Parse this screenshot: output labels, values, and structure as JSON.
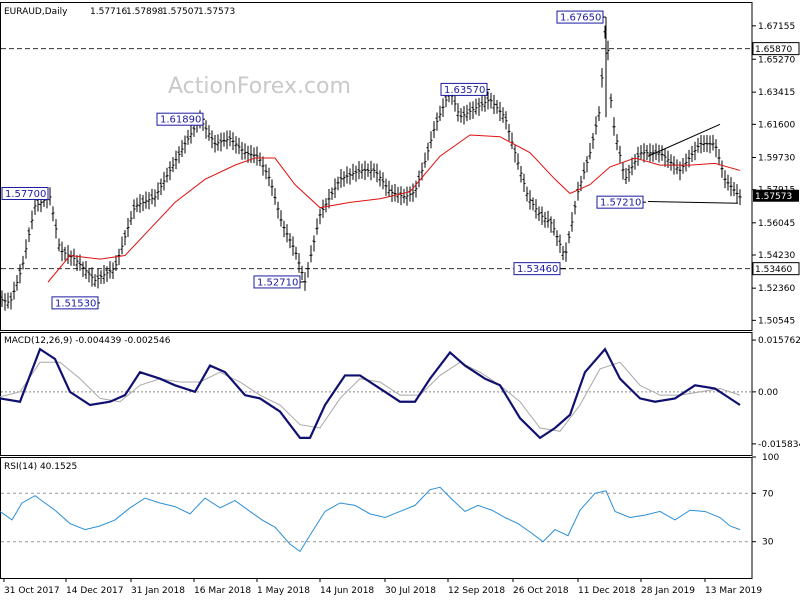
{
  "watermark": "ActionForex.com",
  "chart_data": [
    {
      "type": "ohlc",
      "panel": "price",
      "symbol": "EURAUD,Daily",
      "ohlc_header": [
        "1.57716",
        "1.57898",
        "1.57507",
        "1.57573"
      ],
      "last_price": "1.57573",
      "y_range": [
        1.5,
        1.685
      ],
      "y_ticks": [
        "1.67155",
        "1.65270",
        "1.63415",
        "1.61600",
        "1.59730",
        "1.57915",
        "1.56045",
        "1.54230",
        "1.52360",
        "1.50545"
      ],
      "horizontal_levels": [
        "1.65870",
        "1.53460"
      ],
      "annotations": [
        "1.67650",
        "1.63570",
        "1.61890",
        "1.57700",
        "1.57210",
        "1.53460",
        "1.52710",
        "1.51530"
      ],
      "x_tick_labels": [
        "31 Oct 2017",
        "14 Dec 2017",
        "31 Jan 2018",
        "16 Mar 2018",
        "1 May 2018",
        "14 Jun 2018",
        "30 Jul 2018",
        "12 Sep 2018",
        "26 Oct 2018",
        "11 Dec 2018",
        "28 Jan 2019",
        "13 Mar 2019"
      ],
      "price_path": [
        [
          0,
          1.5175
        ],
        [
          10,
          1.5153
        ],
        [
          22,
          1.535
        ],
        [
          35,
          1.57
        ],
        [
          50,
          1.575
        ],
        [
          60,
          1.545
        ],
        [
          75,
          1.54
        ],
        [
          95,
          1.528
        ],
        [
          115,
          1.535
        ],
        [
          135,
          1.57
        ],
        [
          155,
          1.575
        ],
        [
          170,
          1.59
        ],
        [
          185,
          1.605
        ],
        [
          200,
          1.619
        ],
        [
          215,
          1.605
        ],
        [
          230,
          1.608
        ],
        [
          245,
          1.6
        ],
        [
          258,
          1.598
        ],
        [
          270,
          1.585
        ],
        [
          282,
          1.56
        ],
        [
          295,
          1.545
        ],
        [
          305,
          1.5271
        ],
        [
          320,
          1.565
        ],
        [
          340,
          1.585
        ],
        [
          360,
          1.59
        ],
        [
          375,
          1.59
        ],
        [
          390,
          1.578
        ],
        [
          405,
          1.575
        ],
        [
          415,
          1.578
        ],
        [
          425,
          1.595
        ],
        [
          435,
          1.615
        ],
        [
          450,
          1.635
        ],
        [
          460,
          1.62
        ],
        [
          475,
          1.625
        ],
        [
          490,
          1.63
        ],
        [
          505,
          1.62
        ],
        [
          515,
          1.6
        ],
        [
          528,
          1.575
        ],
        [
          540,
          1.565
        ],
        [
          552,
          1.56
        ],
        [
          565,
          1.541
        ],
        [
          578,
          1.578
        ],
        [
          590,
          1.6
        ],
        [
          600,
          1.625
        ],
        [
          606,
          1.6765
        ],
        [
          612,
          1.62
        ],
        [
          625,
          1.585
        ],
        [
          640,
          1.6
        ],
        [
          660,
          1.6
        ],
        [
          680,
          1.59
        ],
        [
          700,
          1.605
        ],
        [
          715,
          1.605
        ],
        [
          725,
          1.585
        ],
        [
          740,
          1.575
        ]
      ],
      "ma_path": [
        [
          48,
          1.527
        ],
        [
          70,
          1.542
        ],
        [
          100,
          1.54
        ],
        [
          125,
          1.542
        ],
        [
          150,
          1.557
        ],
        [
          175,
          1.572
        ],
        [
          205,
          1.585
        ],
        [
          235,
          1.593
        ],
        [
          255,
          1.597
        ],
        [
          275,
          1.597
        ],
        [
          295,
          1.582
        ],
        [
          320,
          1.569
        ],
        [
          350,
          1.572
        ],
        [
          380,
          1.574
        ],
        [
          410,
          1.578
        ],
        [
          440,
          1.598
        ],
        [
          470,
          1.61
        ],
        [
          500,
          1.609
        ],
        [
          530,
          1.6
        ],
        [
          555,
          1.585
        ],
        [
          570,
          1.577
        ],
        [
          590,
          1.582
        ],
        [
          610,
          1.592
        ],
        [
          635,
          1.597
        ],
        [
          660,
          1.593
        ],
        [
          690,
          1.593
        ],
        [
          715,
          1.594
        ],
        [
          740,
          1.59
        ]
      ]
    },
    {
      "type": "line",
      "panel": "macd",
      "label": "MACD(12,26,9) -0.004439 -0.002546",
      "y_range": [
        -0.018,
        0.017
      ],
      "y_ticks": [
        "0.015762",
        "0.00",
        "-0.015834"
      ],
      "macd_path": [
        [
          0,
          -0.002
        ],
        [
          20,
          -0.003
        ],
        [
          40,
          0.013
        ],
        [
          55,
          0.01
        ],
        [
          70,
          0.0
        ],
        [
          90,
          -0.004
        ],
        [
          110,
          -0.003
        ],
        [
          125,
          -0.001
        ],
        [
          140,
          0.006
        ],
        [
          160,
          0.004
        ],
        [
          175,
          0.002
        ],
        [
          195,
          0.0
        ],
        [
          210,
          0.008
        ],
        [
          225,
          0.006
        ],
        [
          245,
          -0.001
        ],
        [
          260,
          -0.002
        ],
        [
          280,
          -0.006
        ],
        [
          300,
          -0.014
        ],
        [
          310,
          -0.014
        ],
        [
          325,
          -0.004
        ],
        [
          345,
          0.005
        ],
        [
          360,
          0.005
        ],
        [
          380,
          0.001
        ],
        [
          400,
          -0.003
        ],
        [
          415,
          -0.003
        ],
        [
          430,
          0.004
        ],
        [
          450,
          0.012
        ],
        [
          465,
          0.008
        ],
        [
          485,
          0.004
        ],
        [
          500,
          0.002
        ],
        [
          520,
          -0.008
        ],
        [
          540,
          -0.014
        ],
        [
          555,
          -0.011
        ],
        [
          570,
          -0.007
        ],
        [
          585,
          0.006
        ],
        [
          605,
          0.013
        ],
        [
          620,
          0.004
        ],
        [
          640,
          -0.002
        ],
        [
          655,
          -0.003
        ],
        [
          675,
          -0.002
        ],
        [
          695,
          0.002
        ],
        [
          715,
          0.001
        ],
        [
          725,
          -0.001
        ],
        [
          740,
          -0.004
        ]
      ],
      "signal_path": [
        [
          0,
          -0.0015
        ],
        [
          20,
          0.0
        ],
        [
          40,
          0.009
        ],
        [
          60,
          0.009
        ],
        [
          80,
          0.004
        ],
        [
          100,
          -0.002
        ],
        [
          120,
          -0.003
        ],
        [
          140,
          0.002
        ],
        [
          160,
          0.004
        ],
        [
          180,
          0.003
        ],
        [
          200,
          0.003
        ],
        [
          220,
          0.006
        ],
        [
          240,
          0.003
        ],
        [
          260,
          -0.001
        ],
        [
          280,
          -0.004
        ],
        [
          300,
          -0.01
        ],
        [
          320,
          -0.011
        ],
        [
          340,
          -0.002
        ],
        [
          360,
          0.004
        ],
        [
          380,
          0.003
        ],
        [
          400,
          -0.001
        ],
        [
          420,
          -0.001
        ],
        [
          440,
          0.005
        ],
        [
          460,
          0.009
        ],
        [
          480,
          0.006
        ],
        [
          500,
          0.002
        ],
        [
          520,
          -0.003
        ],
        [
          540,
          -0.011
        ],
        [
          560,
          -0.012
        ],
        [
          580,
          -0.004
        ],
        [
          600,
          0.007
        ],
        [
          620,
          0.009
        ],
        [
          640,
          0.002
        ],
        [
          660,
          -0.001
        ],
        [
          680,
          -0.001
        ],
        [
          700,
          0.0
        ],
        [
          720,
          0.001
        ],
        [
          740,
          -0.001
        ]
      ]
    },
    {
      "type": "line",
      "panel": "rsi",
      "label": "RSI(14) 40.1525",
      "y_range": [
        0,
        100
      ],
      "y_ticks": [
        "100",
        "70",
        "30",
        "0"
      ],
      "levels": [
        70,
        30
      ],
      "rsi_path": [
        [
          0,
          55
        ],
        [
          12,
          48
        ],
        [
          22,
          62
        ],
        [
          35,
          68
        ],
        [
          45,
          62
        ],
        [
          55,
          56
        ],
        [
          70,
          45
        ],
        [
          85,
          40
        ],
        [
          100,
          43
        ],
        [
          115,
          48
        ],
        [
          130,
          58
        ],
        [
          145,
          66
        ],
        [
          160,
          62
        ],
        [
          175,
          59
        ],
        [
          190,
          53
        ],
        [
          205,
          66
        ],
        [
          220,
          58
        ],
        [
          235,
          64
        ],
        [
          250,
          55
        ],
        [
          262,
          48
        ],
        [
          275,
          42
        ],
        [
          290,
          28
        ],
        [
          300,
          22
        ],
        [
          312,
          38
        ],
        [
          325,
          55
        ],
        [
          340,
          62
        ],
        [
          355,
          60
        ],
        [
          370,
          53
        ],
        [
          385,
          50
        ],
        [
          400,
          55
        ],
        [
          415,
          60
        ],
        [
          430,
          73
        ],
        [
          440,
          75
        ],
        [
          452,
          65
        ],
        [
          465,
          55
        ],
        [
          478,
          60
        ],
        [
          492,
          56
        ],
        [
          505,
          50
        ],
        [
          518,
          45
        ],
        [
          530,
          38
        ],
        [
          543,
          30
        ],
        [
          555,
          40
        ],
        [
          568,
          35
        ],
        [
          580,
          56
        ],
        [
          595,
          70
        ],
        [
          606,
          72
        ],
        [
          615,
          55
        ],
        [
          630,
          50
        ],
        [
          645,
          52
        ],
        [
          660,
          55
        ],
        [
          675,
          48
        ],
        [
          690,
          56
        ],
        [
          705,
          55
        ],
        [
          720,
          50
        ],
        [
          730,
          43
        ],
        [
          740,
          40
        ]
      ]
    }
  ]
}
